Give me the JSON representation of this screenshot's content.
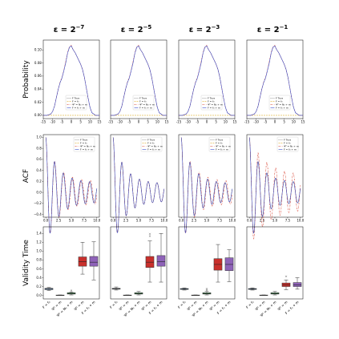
{
  "chart_data": {
    "type": "figure-grid",
    "column_titles": [
      {
        "base": "ε = 2",
        "exp": "−7"
      },
      {
        "base": "ε = 2",
        "exp": "−5"
      },
      {
        "base": "ε = 2",
        "exp": "−3"
      },
      {
        "base": "ε = 2",
        "exp": "−1"
      }
    ],
    "row_labels": [
      "Probability",
      "ACF",
      "Validity Time"
    ],
    "legend": [
      {
        "label": "F True",
        "color": "#666666",
        "dash": "1,1"
      },
      {
        "label": "F = f₀",
        "color": "#e0b030",
        "dash": "2,1"
      },
      {
        "label": "Ψ⁰ = N₀ + m",
        "color": "#d94a3a",
        "dash": "2,1,0.5,1"
      },
      {
        "label": "F = f₀ + m",
        "color": "#3a4fd0",
        "dash": ""
      }
    ],
    "colors": {
      "truth": "#666666",
      "f0": "#e0b030",
      "psi": "#d94a3a",
      "fm": "#3a4fd0",
      "box_blue": "#4a78b0",
      "box_orange": "#d9832f",
      "box_green": "#3f9a52",
      "box_red": "#c9302c",
      "box_purple": "#8e62b8"
    },
    "probability": {
      "xlim": [
        -15,
        15
      ],
      "ylim": [
        -0.005,
        0.115
      ],
      "xticks": [
        -15,
        -10,
        -5,
        0,
        5,
        10,
        15
      ],
      "yticks": [
        0.0,
        0.02,
        0.04,
        0.06,
        0.08,
        0.1
      ],
      "ytick_labels": [
        "0.00",
        "0.02",
        "0.04",
        "0.06",
        "0.08",
        "0.10"
      ],
      "x": [
        -15,
        -13,
        -11,
        -10,
        -9,
        -8,
        -7,
        -6,
        -5,
        -4,
        -3,
        -2,
        -1,
        0,
        1,
        2,
        3,
        4,
        5,
        6,
        7,
        8,
        9,
        10,
        11,
        13,
        15
      ],
      "truth": [
        0.0,
        0.0,
        0.002,
        0.006,
        0.014,
        0.027,
        0.04,
        0.05,
        0.057,
        0.068,
        0.08,
        0.095,
        0.104,
        0.106,
        0.1,
        0.096,
        0.09,
        0.084,
        0.078,
        0.07,
        0.058,
        0.042,
        0.026,
        0.012,
        0.004,
        0.0,
        0.0
      ],
      "f0": [
        0.0,
        0.0,
        0.0,
        0.0,
        0.0,
        0.0,
        0.0,
        0.0,
        0.0,
        0.0,
        0.0,
        0.0,
        0.0,
        0.0,
        0.0,
        0.0,
        0.0,
        0.0,
        0.0,
        0.0,
        0.0,
        0.0,
        0.0,
        0.0,
        0.0,
        0.0,
        0.0
      ],
      "psi": [
        0.0,
        0.0,
        0.002,
        0.006,
        0.014,
        0.027,
        0.04,
        0.051,
        0.058,
        0.069,
        0.082,
        0.096,
        0.105,
        0.107,
        0.1,
        0.096,
        0.09,
        0.084,
        0.078,
        0.07,
        0.058,
        0.042,
        0.026,
        0.012,
        0.004,
        0.0,
        0.0
      ],
      "fm": [
        0.0,
        0.0,
        0.002,
        0.006,
        0.014,
        0.027,
        0.04,
        0.05,
        0.057,
        0.068,
        0.08,
        0.095,
        0.104,
        0.106,
        0.1,
        0.096,
        0.09,
        0.084,
        0.078,
        0.07,
        0.058,
        0.042,
        0.026,
        0.012,
        0.004,
        0.0,
        0.0
      ]
    },
    "acf": {
      "xlim": [
        -0.5,
        10.5
      ],
      "ylim": [
        -0.45,
        1.05
      ],
      "xticks": [
        0.0,
        2.5,
        5.0,
        7.5,
        10.0
      ],
      "xtick_labels": [
        "0.0",
        "2.5",
        "5.0",
        "7.5",
        "10.0"
      ],
      "yticks": [
        -0.4,
        -0.2,
        0.0,
        0.2,
        0.4,
        0.6,
        0.8,
        1.0
      ],
      "ytick_labels": [
        "−0.4",
        "−0.2",
        "0.0",
        "0.2",
        "0.4",
        "0.6",
        "0.8",
        "1.0"
      ],
      "panels": [
        {
          "truth": {
            "period": 1.72,
            "decay": 0.45,
            "floor": 0.18
          },
          "f0": {
            "period": 1.72,
            "decay": 0.45,
            "floor": 0.18
          },
          "psi": {
            "period": 1.75,
            "decay": 0.45,
            "floor": 0.2
          },
          "fm": {
            "period": 1.72,
            "decay": 0.45,
            "floor": 0.18
          }
        },
        {
          "truth": {
            "period": 1.72,
            "decay": 0.45,
            "floor": 0.16
          },
          "f0": {
            "period": 1.72,
            "decay": 0.45,
            "floor": 0.16
          },
          "psi": {
            "period": 1.72,
            "decay": 0.45,
            "floor": 0.16
          },
          "fm": {
            "period": 1.72,
            "decay": 0.45,
            "floor": 0.16
          }
        },
        {
          "truth": {
            "period": 1.72,
            "decay": 0.45,
            "floor": 0.16
          },
          "f0": {
            "period": 1.72,
            "decay": 0.45,
            "floor": 0.16
          },
          "psi": {
            "period": 1.75,
            "decay": 0.45,
            "floor": 0.2
          },
          "fm": {
            "period": 1.72,
            "decay": 0.45,
            "floor": 0.16
          }
        },
        {
          "truth": {
            "period": 1.72,
            "decay": 0.45,
            "floor": 0.18
          },
          "f0": {
            "period": 1.72,
            "decay": 0.45,
            "floor": 0.18
          },
          "psi": {
            "period": 1.72,
            "decay": 0.3,
            "floor": 0.3
          },
          "fm": {
            "period": 1.72,
            "decay": 0.45,
            "floor": 0.18
          }
        }
      ]
    },
    "validity": {
      "ylim": [
        -0.08,
        1.55
      ],
      "yticks": [
        0.0,
        0.2,
        0.4,
        0.6,
        0.8,
        1.0,
        1.2,
        1.4
      ],
      "ytick_labels": [
        "0.0",
        "0.2",
        "0.4",
        "0.6",
        "0.8",
        "1.0",
        "1.2",
        "1.4"
      ],
      "categories": [
        "F = f₀",
        "Ψ⁰ = m",
        "Ψ⁰ = N₀ + m",
        "Ψ⁰ = m",
        "F = f₀ + m"
      ],
      "box_colors": [
        "box_blue",
        "box_orange",
        "box_green",
        "box_red",
        "box_purple"
      ],
      "panels": [
        [
          {
            "min": 0.11,
            "q1": 0.13,
            "med": 0.145,
            "q3": 0.16,
            "max": 0.18,
            "fliers": []
          },
          {
            "min": 0.0,
            "q1": 0.002,
            "med": 0.005,
            "q3": 0.008,
            "max": 0.01,
            "fliers": []
          },
          {
            "min": 0.01,
            "q1": 0.03,
            "med": 0.045,
            "q3": 0.06,
            "max": 0.08,
            "fliers": [
              0.11
            ]
          },
          {
            "min": 0.48,
            "q1": 0.66,
            "med": 0.76,
            "q3": 0.87,
            "max": 1.2,
            "fliers": []
          },
          {
            "min": 0.35,
            "q1": 0.66,
            "med": 0.75,
            "q3": 0.88,
            "max": 1.21,
            "fliers": []
          }
        ],
        [
          {
            "min": 0.12,
            "q1": 0.14,
            "med": 0.15,
            "q3": 0.16,
            "max": 0.19,
            "fliers": []
          },
          {
            "min": 0.0,
            "q1": 0.002,
            "med": 0.005,
            "q3": 0.008,
            "max": 0.01,
            "fliers": []
          },
          {
            "min": 0.01,
            "q1": 0.03,
            "med": 0.045,
            "q3": 0.06,
            "max": 0.09,
            "fliers": []
          },
          {
            "min": 0.3,
            "q1": 0.63,
            "med": 0.75,
            "q3": 0.88,
            "max": 1.23,
            "fliers": [
              1.34,
              1.39
            ]
          },
          {
            "min": 0.3,
            "q1": 0.66,
            "med": 0.76,
            "q3": 0.9,
            "max": 1.4,
            "fliers": []
          }
        ],
        [
          {
            "min": 0.12,
            "q1": 0.135,
            "med": 0.145,
            "q3": 0.155,
            "max": 0.17,
            "fliers": []
          },
          {
            "min": 0.0,
            "q1": 0.002,
            "med": 0.005,
            "q3": 0.008,
            "max": 0.01,
            "fliers": []
          },
          {
            "min": 0.01,
            "q1": 0.03,
            "med": 0.045,
            "q3": 0.06,
            "max": 0.09,
            "fliers": [
              0.12,
              0.15
            ]
          },
          {
            "min": 0.3,
            "q1": 0.57,
            "med": 0.7,
            "q3": 0.83,
            "max": 1.15,
            "fliers": []
          },
          {
            "min": 0.31,
            "q1": 0.56,
            "med": 0.7,
            "q3": 0.85,
            "max": 1.03,
            "fliers": []
          }
        ],
        [
          {
            "min": 0.12,
            "q1": 0.135,
            "med": 0.145,
            "q3": 0.155,
            "max": 0.17,
            "fliers": []
          },
          {
            "min": 0.0,
            "q1": 0.002,
            "med": 0.005,
            "q3": 0.008,
            "max": 0.01,
            "fliers": []
          },
          {
            "min": 0.01,
            "q1": 0.03,
            "med": 0.045,
            "q3": 0.06,
            "max": 0.09,
            "fliers": []
          },
          {
            "min": 0.13,
            "q1": 0.2,
            "med": 0.24,
            "q3": 0.28,
            "max": 0.35,
            "fliers": [
              0.43
            ]
          },
          {
            "min": 0.14,
            "q1": 0.2,
            "med": 0.24,
            "q3": 0.29,
            "max": 0.4,
            "fliers": []
          }
        ]
      ]
    }
  }
}
